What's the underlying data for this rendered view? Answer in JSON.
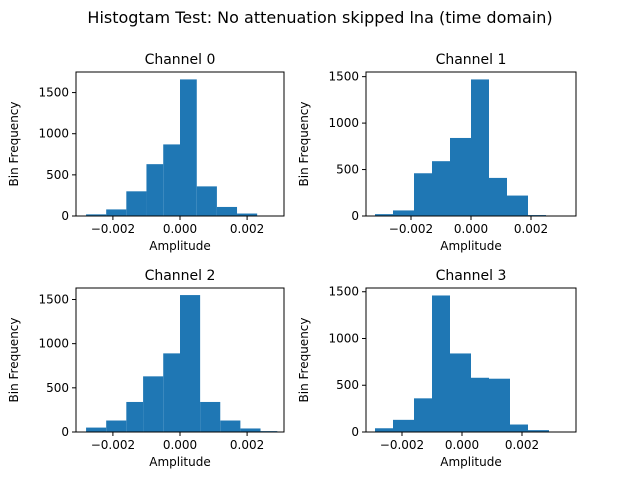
{
  "figure": {
    "suptitle": "Histogtam Test: No attenuation skipped lna (time domain)"
  },
  "chart_data": [
    {
      "type": "bar",
      "title": "Channel 0",
      "xlabel": "Amplitude",
      "ylabel": "Bin Frequency",
      "bins": [
        {
          "x0": -0.0028,
          "x1": -0.0022,
          "value": 20
        },
        {
          "x0": -0.0022,
          "x1": -0.0016,
          "value": 80
        },
        {
          "x0": -0.0016,
          "x1": -0.001,
          "value": 300
        },
        {
          "x0": -0.001,
          "x1": -0.0005,
          "value": 630
        },
        {
          "x0": -0.0005,
          "x1": 0.0,
          "value": 870
        },
        {
          "x0": 0.0,
          "x1": 0.0005,
          "value": 1660
        },
        {
          "x0": 0.0005,
          "x1": 0.0011,
          "value": 360
        },
        {
          "x0": 0.0011,
          "x1": 0.0017,
          "value": 110
        },
        {
          "x0": 0.0017,
          "x1": 0.0023,
          "value": 30
        },
        {
          "x0": 0.0023,
          "x1": 0.0029,
          "value": 5
        }
      ],
      "xlim": [
        -0.0031,
        0.0031
      ],
      "ylim": [
        0,
        1750
      ],
      "xticks": [
        -0.002,
        0.0,
        0.002
      ],
      "xtick_labels": [
        "−0.002",
        "0.000",
        "0.002"
      ],
      "yticks": [
        0,
        500,
        1000,
        1500
      ],
      "ytick_labels": [
        "0",
        "500",
        "1000",
        "1500"
      ],
      "color": "#1f77b4"
    },
    {
      "type": "bar",
      "title": "Channel 1",
      "xlabel": "Amplitude",
      "ylabel": "Bin Frequency",
      "bins": [
        {
          "x0": -0.0032,
          "x1": -0.0026,
          "value": 20
        },
        {
          "x0": -0.0026,
          "x1": -0.0019,
          "value": 60
        },
        {
          "x0": -0.0019,
          "x1": -0.0013,
          "value": 460
        },
        {
          "x0": -0.0013,
          "x1": -0.0007,
          "value": 590
        },
        {
          "x0": -0.0007,
          "x1": 0.0,
          "value": 840
        },
        {
          "x0": 0.0,
          "x1": 0.0006,
          "value": 1470
        },
        {
          "x0": 0.0006,
          "x1": 0.0012,
          "value": 410
        },
        {
          "x0": 0.0012,
          "x1": 0.0019,
          "value": 220
        },
        {
          "x0": 0.0019,
          "x1": 0.0025,
          "value": 10
        }
      ],
      "xlim": [
        -0.0035,
        0.0035
      ],
      "ylim": [
        0,
        1550
      ],
      "xticks": [
        -0.002,
        0.0,
        0.002
      ],
      "xtick_labels": [
        "−0.002",
        "0.000",
        "0.002"
      ],
      "yticks": [
        0,
        500,
        1000,
        1500
      ],
      "ytick_labels": [
        "0",
        "500",
        "1000",
        "1500"
      ],
      "color": "#1f77b4"
    },
    {
      "type": "bar",
      "title": "Channel 2",
      "xlabel": "Amplitude",
      "ylabel": "Bin Frequency",
      "bins": [
        {
          "x0": -0.0028,
          "x1": -0.0022,
          "value": 50
        },
        {
          "x0": -0.0022,
          "x1": -0.0016,
          "value": 130
        },
        {
          "x0": -0.0016,
          "x1": -0.0011,
          "value": 340
        },
        {
          "x0": -0.0011,
          "x1": -0.0005,
          "value": 630
        },
        {
          "x0": -0.0005,
          "x1": 0.0,
          "value": 890
        },
        {
          "x0": 0.0,
          "x1": 0.0006,
          "value": 1550
        },
        {
          "x0": 0.0006,
          "x1": 0.0012,
          "value": 340
        },
        {
          "x0": 0.0012,
          "x1": 0.0018,
          "value": 130
        },
        {
          "x0": 0.0018,
          "x1": 0.0024,
          "value": 40
        },
        {
          "x0": 0.0024,
          "x1": 0.0029,
          "value": 10
        }
      ],
      "xlim": [
        -0.0031,
        0.0031
      ],
      "ylim": [
        0,
        1630
      ],
      "xticks": [
        -0.002,
        0.0,
        0.002
      ],
      "xtick_labels": [
        "−0.002",
        "0.000",
        "0.002"
      ],
      "yticks": [
        0,
        500,
        1000,
        1500
      ],
      "ytick_labels": [
        "0",
        "500",
        "1000",
        "1500"
      ],
      "color": "#1f77b4"
    },
    {
      "type": "bar",
      "title": "Channel 3",
      "xlabel": "Amplitude",
      "ylabel": "Bin Frequency",
      "bins": [
        {
          "x0": -0.0029,
          "x1": -0.0023,
          "value": 40
        },
        {
          "x0": -0.0023,
          "x1": -0.0016,
          "value": 130
        },
        {
          "x0": -0.0016,
          "x1": -0.001,
          "value": 360
        },
        {
          "x0": -0.001,
          "x1": -0.0004,
          "value": 1460
        },
        {
          "x0": -0.0004,
          "x1": 0.0003,
          "value": 840
        },
        {
          "x0": 0.0003,
          "x1": 0.0009,
          "value": 580
        },
        {
          "x0": 0.0009,
          "x1": 0.0016,
          "value": 570
        },
        {
          "x0": 0.0016,
          "x1": 0.0022,
          "value": 80
        },
        {
          "x0": 0.0022,
          "x1": 0.0029,
          "value": 20
        },
        {
          "x0": 0.0029,
          "x1": 0.0035,
          "value": 3
        }
      ],
      "xlim": [
        -0.0032,
        0.0038
      ],
      "ylim": [
        0,
        1540
      ],
      "xticks": [
        -0.002,
        0.0,
        0.002
      ],
      "xtick_labels": [
        "−0.002",
        "0.000",
        "0.002"
      ],
      "yticks": [
        0,
        500,
        1000,
        1500
      ],
      "ytick_labels": [
        "0",
        "500",
        "1000",
        "1500"
      ],
      "color": "#1f77b4"
    }
  ]
}
